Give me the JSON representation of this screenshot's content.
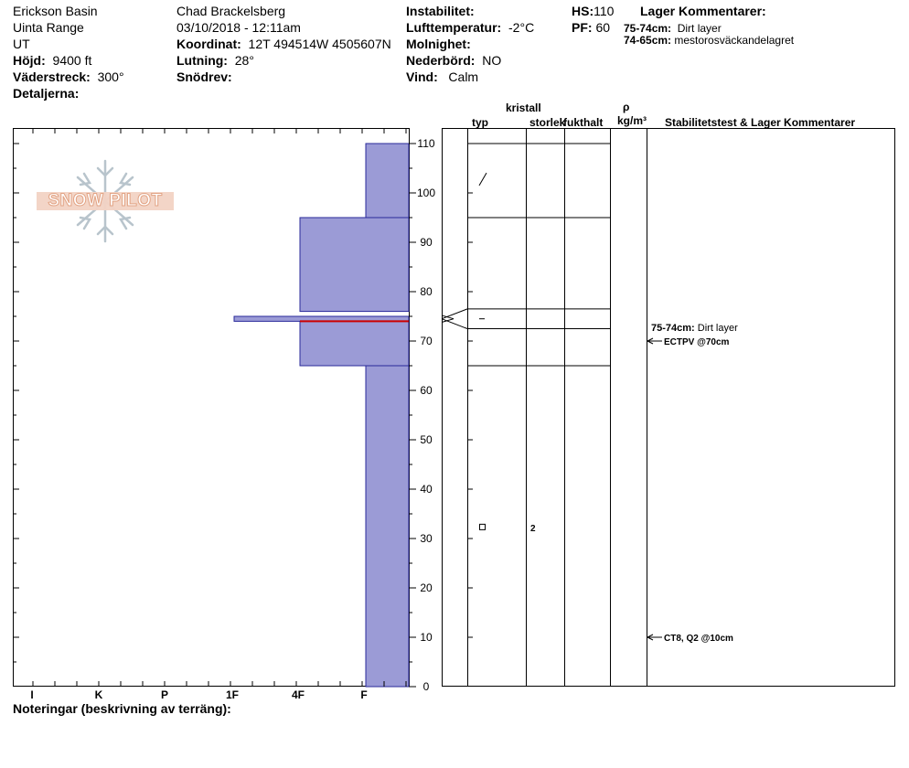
{
  "header": {
    "location": "Erickson Basin",
    "range": "Uinta Range",
    "state": "UT",
    "elevation_label": "Höjd:",
    "elevation_value": "9400 ft",
    "aspect_label": "Väderstreck:",
    "aspect_value": "300°",
    "details_label": "Detaljerna:",
    "observer": "Chad Brackelsberg",
    "datetime": "03/10/2018 - 12:11am",
    "coord_label": "Koordinat:",
    "coord_value": "12T 494514W 4505607N",
    "slope_label": "Lutning:",
    "slope_value": "28°",
    "snowdrift_label": "Snödrev:",
    "instability_label": "Instabilitet:",
    "airtemp_label": "Lufttemperatur:",
    "airtemp_value": "-2°C",
    "sky_label": "Molnighet:",
    "precip_label": "Nederbörd:",
    "precip_value": "NO",
    "wind_label": "Vind:",
    "wind_value": "Calm",
    "hs_label": "HS:",
    "hs_value": "110",
    "pf_label": "PF:",
    "pf_value": "60",
    "layer_comments_title": "Lager Kommentarer:",
    "layer_comments": [
      {
        "range": "75-74cm:",
        "text": "Dirt layer"
      },
      {
        "range": "74-65cm:",
        "text": "mestorosväckandelagret"
      }
    ]
  },
  "logo_text": "SNOW PILOT",
  "column_headers": {
    "crystal": "kristall",
    "type": "typ",
    "size": "storlek",
    "moisture": "fukthalt",
    "rho": "ρ",
    "density_unit": "kg/m³",
    "stability": "Stabilitetstest & Lager Kommentarer"
  },
  "footer_notes_label": "Noteringar (beskrivning av terräng):",
  "colors": {
    "layer_fill": "#9b9bd6",
    "layer_stroke": "#2a2a9a",
    "weak_layer": "#cc0000"
  },
  "chart_data": {
    "type": "bar",
    "y_axis": {
      "range": [
        0,
        110
      ],
      "ticks": [
        0,
        10,
        20,
        30,
        40,
        50,
        60,
        70,
        80,
        90,
        100,
        110
      ]
    },
    "hardness_scale": [
      "I",
      "K",
      "P",
      "1F",
      "4F",
      "F"
    ],
    "layers": [
      {
        "top": 110,
        "bottom": 95,
        "hardness": "F",
        "grain_symbol": "slash"
      },
      {
        "top": 95,
        "bottom": 76,
        "hardness": "4F"
      },
      {
        "top": 75,
        "bottom": 74,
        "hardness": "1F",
        "grain_symbol": "dash"
      },
      {
        "top": 74,
        "bottom": 65,
        "hardness": "4F"
      },
      {
        "top": 65,
        "bottom": 0,
        "hardness": "F",
        "grain_symbol": "square",
        "grain_size": "2"
      }
    ],
    "weak_layer_depth": 74,
    "structure_lines": [
      110,
      95,
      76.5,
      72.5,
      65
    ],
    "annotations": [
      {
        "depth": 73,
        "range": "75-74cm:",
        "text": "Dirt layer"
      },
      {
        "depth": 70,
        "text": "ECTPV @70cm"
      },
      {
        "depth": 10,
        "text": "CT8, Q2 @10cm"
      }
    ]
  }
}
